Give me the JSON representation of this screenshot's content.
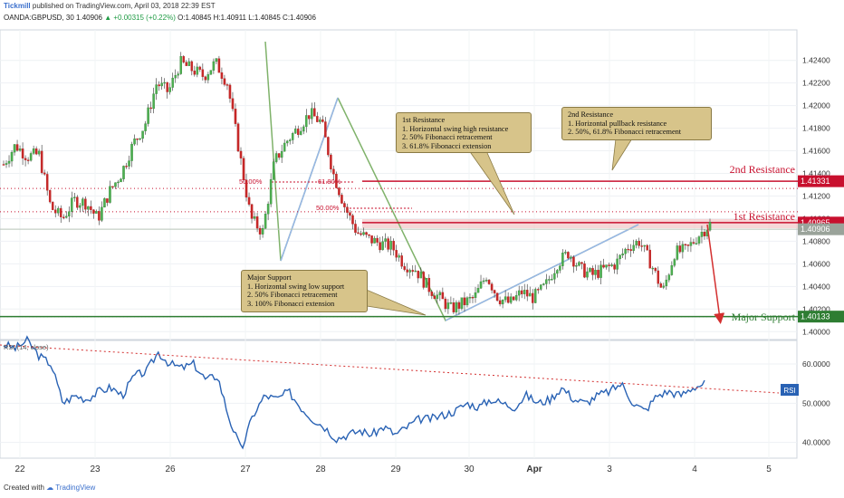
{
  "header": {
    "brand": "Tickmill",
    "published": "published on TradingView.com, April 03, 2018 22:39 EST",
    "symbol_line": "OANDA:GBPUSD, 30",
    "price": "1.40906",
    "change": "+0.00315 (+0.22%)",
    "ohlc": "O:1.40845 H:1.40911 L:1.40845 C:1.40906"
  },
  "footer": {
    "created_with": "Created with",
    "brand": "TradingView"
  },
  "annotations": {
    "major_support": {
      "lines": [
        "Major Support",
        "1. Horizontal swing low support",
        "2. 50% Fibonacci retracement",
        "3. 100% Fibonacci extension"
      ]
    },
    "first_resistance": {
      "lines": [
        "1st Resistance",
        "1. Horizontal swing high resistance",
        "2. 50% Fibonacci retracement",
        "3. 61.8% Fibonacci extension"
      ]
    },
    "second_resistance": {
      "lines": [
        "2nd Resistance",
        "1. Horizontal pullback resistance",
        "2. 50%, 61.8% Fibonacci retracement"
      ]
    },
    "labels": {
      "second_resistance": "2nd Resistance",
      "first_resistance": "1st Resistance",
      "major_support": "Major Support",
      "fib_50_a": "50.00%",
      "fib_618": "61.80%",
      "fib_50_b": "50.00%",
      "rsi_title": "RSI (14, close)",
      "rsi_tag": "RSI"
    }
  },
  "chart_data": [
    {
      "type": "candlestick",
      "title": "OANDA:GBPUSD, 30",
      "x_ticks": [
        "22",
        "23",
        "26",
        "27",
        "28",
        "29",
        "30",
        "Apr",
        "3",
        "4",
        "5"
      ],
      "ylim": [
        1.3993,
        1.4267
      ],
      "y_ticks": [
        1.4,
        1.402,
        1.404,
        1.406,
        1.408,
        1.41,
        1.412,
        1.414,
        1.416,
        1.418,
        1.42,
        1.422,
        1.424
      ],
      "price_tags": [
        {
          "label": "1.41331",
          "value": 1.41331,
          "color": "#c8102e"
        },
        {
          "label": "1.40965",
          "value": 1.40965,
          "color": "#c8102e"
        },
        {
          "label": "1.40906",
          "value": 1.40906,
          "color": "#9aa39a"
        },
        {
          "label": "1.40133",
          "value": 1.40133,
          "color": "#2e7d32"
        }
      ],
      "levels": [
        {
          "name": "2nd Resistance",
          "value": 1.41331,
          "color": "#c8102e"
        },
        {
          "name": "1st Resistance",
          "value": 1.40965,
          "color": "#c8102e"
        },
        {
          "name": "Major Support",
          "value": 1.40133,
          "color": "#2e7d32"
        }
      ],
      "close_path": [
        [
          0,
          1.4148
        ],
        [
          1,
          1.4165
        ],
        [
          2,
          1.4155
        ],
        [
          3,
          1.4157
        ],
        [
          4,
          1.411
        ],
        [
          5,
          1.41
        ],
        [
          6,
          1.4116
        ],
        [
          7,
          1.4114
        ],
        [
          8,
          1.41
        ],
        [
          9,
          1.4124
        ],
        [
          10,
          1.414
        ],
        [
          11,
          1.4166
        ],
        [
          12,
          1.4183
        ],
        [
          13,
          1.422
        ],
        [
          14,
          1.4212
        ],
        [
          15,
          1.4238
        ],
        [
          16,
          1.4232
        ],
        [
          17,
          1.4226
        ],
        [
          18,
          1.4238
        ],
        [
          19,
          1.422
        ],
        [
          20,
          1.416
        ],
        [
          21,
          1.41
        ],
        [
          22,
          1.4088
        ],
        [
          23,
          1.415
        ],
        [
          24,
          1.4168
        ],
        [
          25,
          1.418
        ],
        [
          26,
          1.4193
        ],
        [
          27,
          1.4185
        ],
        [
          28,
          1.414
        ],
        [
          29,
          1.411
        ],
        [
          30,
          1.4088
        ],
        [
          31,
          1.4082
        ],
        [
          32,
          1.4078
        ],
        [
          33,
          1.4075
        ],
        [
          34,
          1.406
        ],
        [
          35,
          1.4055
        ],
        [
          36,
          1.404
        ],
        [
          37,
          1.403
        ],
        [
          38,
          1.402
        ],
        [
          39,
          1.4025
        ],
        [
          40,
          1.403
        ],
        [
          41,
          1.405
        ],
        [
          42,
          1.403
        ],
        [
          43,
          1.4025
        ],
        [
          44,
          1.4035
        ],
        [
          45,
          1.403
        ],
        [
          46,
          1.404
        ],
        [
          47,
          1.406
        ],
        [
          48,
          1.407
        ],
        [
          49,
          1.4055
        ],
        [
          50,
          1.405
        ],
        [
          51,
          1.4055
        ],
        [
          52,
          1.406
        ],
        [
          53,
          1.4075
        ],
        [
          54,
          1.408
        ],
        [
          55,
          1.406
        ],
        [
          56,
          1.4035
        ],
        [
          57,
          1.407
        ],
        [
          58,
          1.4072
        ],
        [
          59,
          1.4085
        ],
        [
          60,
          1.4095
        ]
      ]
    },
    {
      "type": "line",
      "title": "RSI (14, close)",
      "ylim": [
        36,
        66
      ],
      "y_ticks": [
        40.0,
        50.0,
        60.0
      ],
      "series": [
        {
          "name": "RSI",
          "values": [
            [
              0,
              65
            ],
            [
              1,
              64
            ],
            [
              2,
              66
            ],
            [
              3,
              62
            ],
            [
              4,
              60
            ],
            [
              5,
              50
            ],
            [
              6,
              52
            ],
            [
              7,
              51
            ],
            [
              8,
              53
            ],
            [
              9,
              54
            ],
            [
              10,
              52
            ],
            [
              11,
              57
            ],
            [
              12,
              58
            ],
            [
              13,
              63
            ],
            [
              14,
              60
            ],
            [
              15,
              59
            ],
            [
              16,
              60
            ],
            [
              17,
              56
            ],
            [
              18,
              57
            ],
            [
              19,
              46
            ],
            [
              20,
              38
            ],
            [
              21,
              47
            ],
            [
              22,
              52
            ],
            [
              23,
              51
            ],
            [
              24,
              53
            ],
            [
              25,
              49
            ],
            [
              26,
              46
            ],
            [
              27,
              44
            ],
            [
              28,
              41
            ],
            [
              29,
              42
            ],
            [
              30,
              43
            ],
            [
              31,
              42
            ],
            [
              32,
              44
            ],
            [
              33,
              42
            ],
            [
              34,
              44
            ],
            [
              35,
              46
            ],
            [
              36,
              46
            ],
            [
              37,
              47
            ],
            [
              38,
              48
            ],
            [
              39,
              50
            ],
            [
              40,
              49
            ],
            [
              41,
              51
            ],
            [
              42,
              50
            ],
            [
              43,
              49
            ],
            [
              44,
              52
            ],
            [
              45,
              50
            ],
            [
              46,
              51
            ],
            [
              47,
              54
            ],
            [
              48,
              51
            ],
            [
              49,
              50
            ],
            [
              50,
              52
            ],
            [
              51,
              53
            ],
            [
              52,
              55
            ],
            [
              53,
              50
            ],
            [
              54,
              48
            ],
            [
              55,
              52
            ],
            [
              56,
              53
            ],
            [
              57,
              52
            ],
            [
              58,
              54
            ],
            [
              59,
              55
            ]
          ]
        }
      ],
      "trendline_color": "#d32f2f"
    }
  ]
}
